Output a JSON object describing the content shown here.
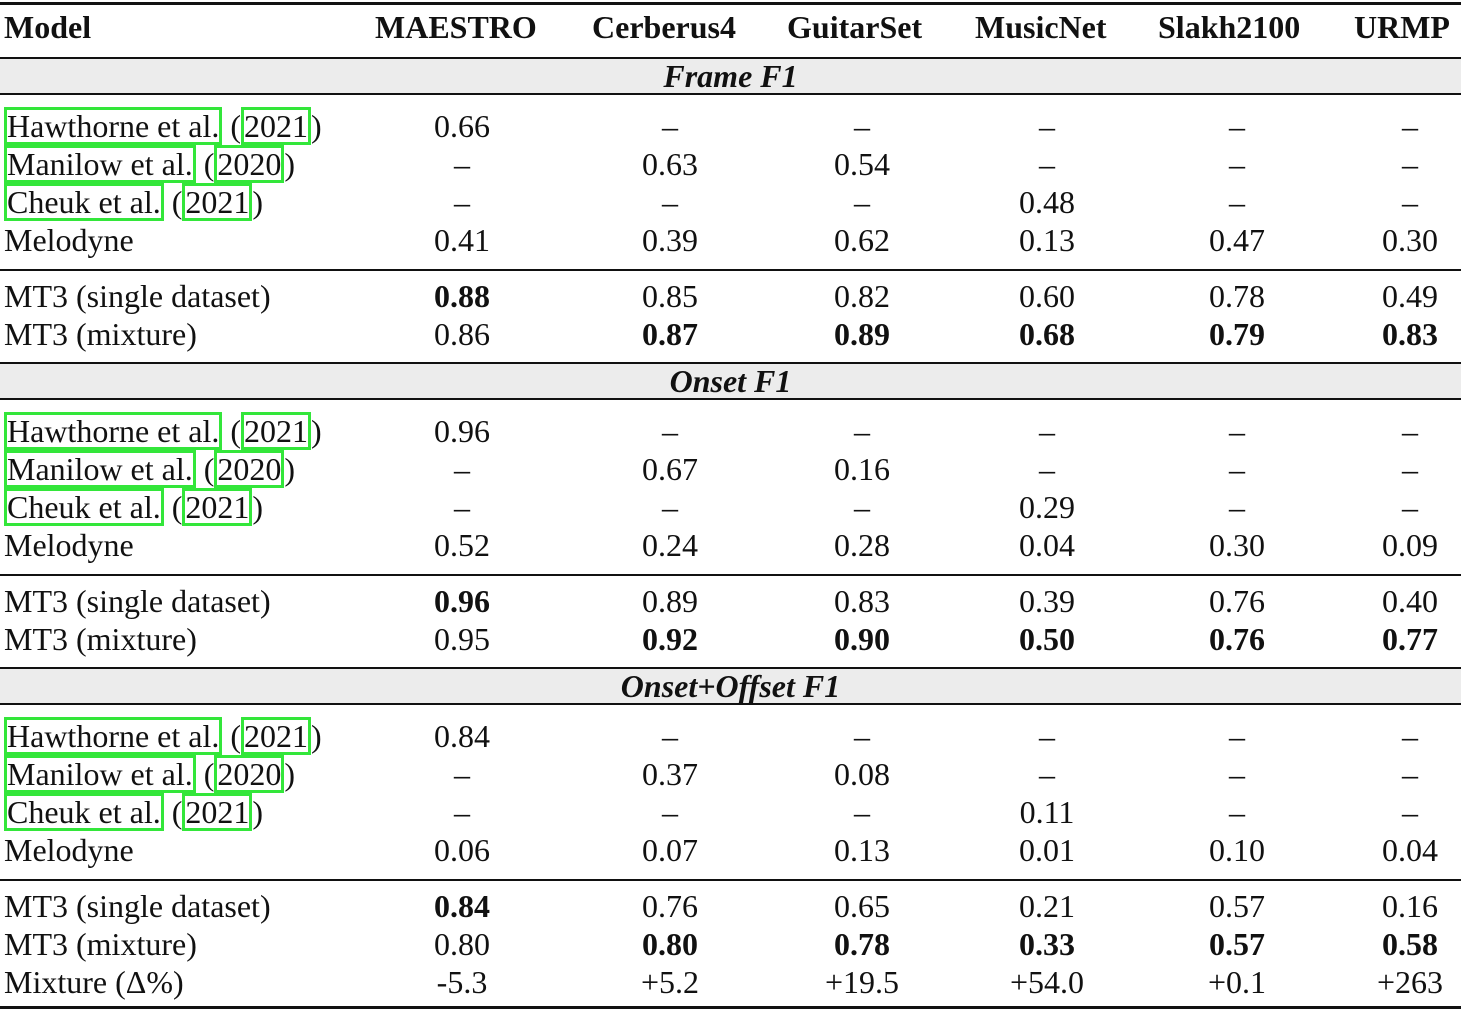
{
  "columns": [
    "Model",
    "MAESTRO",
    "Cerberus4",
    "GuitarSet",
    "MusicNet",
    "Slakh2100",
    "URMP"
  ],
  "sections": [
    {
      "title": "Frame F1",
      "baselines": [
        {
          "author": "Hawthorne et al.",
          "year": "2021",
          "values": [
            "0.66",
            "–",
            "–",
            "–",
            "–",
            "–"
          ]
        },
        {
          "author": "Manilow et al.",
          "year": "2020",
          "values": [
            "–",
            "0.63",
            "0.54",
            "–",
            "–",
            "–"
          ]
        },
        {
          "author": "Cheuk et al.",
          "year": "2021",
          "values": [
            "–",
            "–",
            "–",
            "0.48",
            "–",
            "–"
          ]
        },
        {
          "model": "Melodyne",
          "values": [
            "0.41",
            "0.39",
            "0.62",
            "0.13",
            "0.47",
            "0.30"
          ]
        }
      ],
      "mt3": [
        {
          "model": "MT3 (single dataset)",
          "values": [
            "0.88",
            "0.85",
            "0.82",
            "0.60",
            "0.78",
            "0.49"
          ],
          "bold": [
            true,
            false,
            false,
            false,
            false,
            false
          ]
        },
        {
          "model": "MT3 (mixture)",
          "values": [
            "0.86",
            "0.87",
            "0.89",
            "0.68",
            "0.79",
            "0.83"
          ],
          "bold": [
            false,
            true,
            true,
            true,
            true,
            true
          ]
        }
      ]
    },
    {
      "title": "Onset F1",
      "baselines": [
        {
          "author": "Hawthorne et al.",
          "year": "2021",
          "values": [
            "0.96",
            "–",
            "–",
            "–",
            "–",
            "–"
          ]
        },
        {
          "author": "Manilow et al.",
          "year": "2020",
          "values": [
            "–",
            "0.67",
            "0.16",
            "–",
            "–",
            "–"
          ]
        },
        {
          "author": "Cheuk et al.",
          "year": "2021",
          "values": [
            "–",
            "–",
            "–",
            "0.29",
            "–",
            "–"
          ]
        },
        {
          "model": "Melodyne",
          "values": [
            "0.52",
            "0.24",
            "0.28",
            "0.04",
            "0.30",
            "0.09"
          ]
        }
      ],
      "mt3": [
        {
          "model": "MT3 (single dataset)",
          "values": [
            "0.96",
            "0.89",
            "0.83",
            "0.39",
            "0.76",
            "0.40"
          ],
          "bold": [
            true,
            false,
            false,
            false,
            false,
            false
          ]
        },
        {
          "model": "MT3 (mixture)",
          "values": [
            "0.95",
            "0.92",
            "0.90",
            "0.50",
            "0.76",
            "0.77"
          ],
          "bold": [
            false,
            true,
            true,
            true,
            true,
            true
          ]
        }
      ]
    },
    {
      "title": "Onset+Offset F1",
      "baselines": [
        {
          "author": "Hawthorne et al.",
          "year": "2021",
          "values": [
            "0.84",
            "–",
            "–",
            "–",
            "–",
            "–"
          ]
        },
        {
          "author": "Manilow et al.",
          "year": "2020",
          "values": [
            "–",
            "0.37",
            "0.08",
            "–",
            "–",
            "–"
          ]
        },
        {
          "author": "Cheuk et al.",
          "year": "2021",
          "values": [
            "–",
            "–",
            "–",
            "0.11",
            "–",
            "–"
          ]
        },
        {
          "model": "Melodyne",
          "values": [
            "0.06",
            "0.07",
            "0.13",
            "0.01",
            "0.10",
            "0.04"
          ]
        }
      ],
      "mt3": [
        {
          "model": "MT3 (single dataset)",
          "values": [
            "0.84",
            "0.76",
            "0.65",
            "0.21",
            "0.57",
            "0.16"
          ],
          "bold": [
            true,
            false,
            false,
            false,
            false,
            false
          ]
        },
        {
          "model": "MT3 (mixture)",
          "values": [
            "0.80",
            "0.80",
            "0.78",
            "0.33",
            "0.57",
            "0.58"
          ],
          "bold": [
            false,
            true,
            true,
            true,
            true,
            true
          ]
        },
        {
          "model": "Mixture (Δ%)",
          "values": [
            "-5.3",
            "+5.2",
            "+19.5",
            "+54.0",
            "+0.1",
            "+263"
          ],
          "bold": [
            false,
            false,
            false,
            false,
            false,
            false
          ]
        }
      ]
    }
  ],
  "colors": {
    "citation_box": "#33e63a",
    "section_band": "#ececec"
  }
}
